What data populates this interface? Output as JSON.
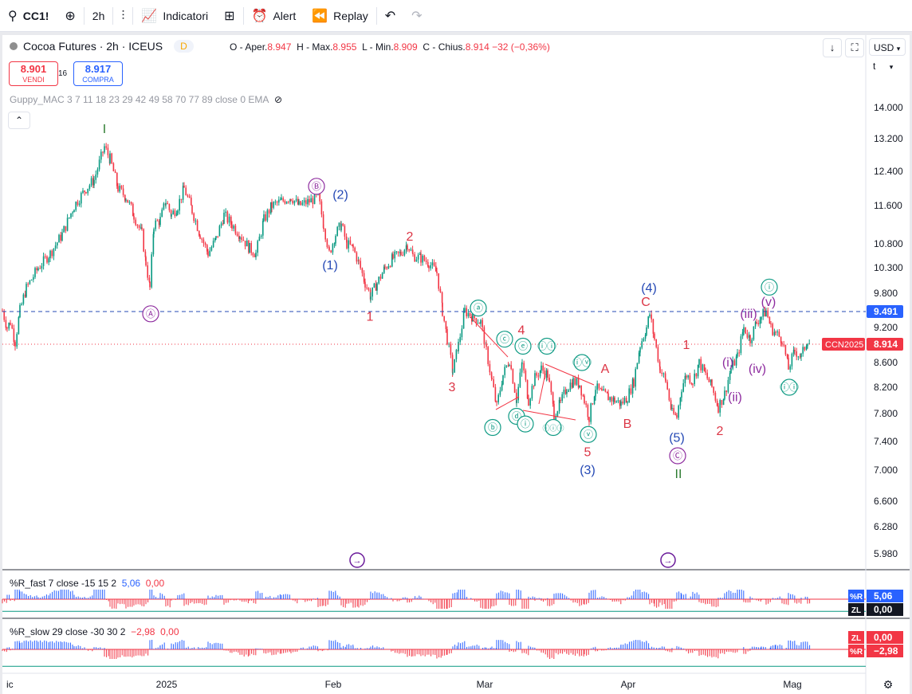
{
  "toolbar": {
    "symbol": "CC1!",
    "interval": "2h",
    "indicators_label": "Indicatori",
    "alert_label": "Alert",
    "replay_label": "Replay"
  },
  "header": {
    "title": "Cocoa Futures · 2h · ICEUS",
    "badge": "D",
    "ohlc": {
      "open_label": "O - Aper.",
      "open": "8.947",
      "high_label": "H - Max.",
      "high": "8.955",
      "low_label": "L - Min.",
      "low": "8.909",
      "close_label": "C - Chius.",
      "close": "8.914",
      "change": "−32 (−0,36%)"
    }
  },
  "trade": {
    "sell_price": "8.901",
    "sell_label": "VENDI",
    "spread": "16",
    "buy_price": "8.917",
    "buy_label": "COMPRA"
  },
  "indicator_label": "Guppy_MAC 3 7 11 18 23 29 42 49 58 70 77 89 close 0 EMA",
  "right_controls": {
    "currency": "USD",
    "unit": "t"
  },
  "colors": {
    "up": "#089981",
    "down": "#f23645",
    "blue": "#2962ff",
    "wave_blue": "#2549b5",
    "wave_red": "#dc3545",
    "wave_teal": "#0f9b84",
    "wave_purple": "#8e2c9f",
    "wave_green": "#2e7d32"
  },
  "chart_data": [
    {
      "type": "candlestick",
      "title": "Cocoa Futures · 2h · ICEUS",
      "ylim": [
        5.7,
        14.5
      ],
      "y_ticks": [
        "14.000",
        "13.200",
        "12.400",
        "11.600",
        "10.800",
        "10.300",
        "9.800",
        "9.200",
        "8.600",
        "8.200",
        "7.800",
        "7.400",
        "7.000",
        "6.600",
        "6.280",
        "5.980"
      ],
      "x_ticks": [
        "ic",
        "2025",
        "Feb",
        "Mar",
        "Apr",
        "Mag"
      ],
      "price_path": [
        [
          0,
          9.5
        ],
        [
          6,
          9.2
        ],
        [
          10,
          9.3
        ],
        [
          16,
          8.95
        ],
        [
          22,
          9.5
        ],
        [
          30,
          9.9
        ],
        [
          45,
          10.3
        ],
        [
          60,
          10.6
        ],
        [
          75,
          11.0
        ],
        [
          90,
          11.6
        ],
        [
          105,
          12.0
        ],
        [
          115,
          12.2
        ],
        [
          128,
          13.0
        ],
        [
          135,
          12.7
        ],
        [
          145,
          12.0
        ],
        [
          155,
          11.8
        ],
        [
          165,
          11.4
        ],
        [
          175,
          11.0
        ],
        [
          180,
          10.4
        ],
        [
          185,
          9.9
        ],
        [
          190,
          11.2
        ],
        [
          198,
          11.3
        ],
        [
          205,
          11.7
        ],
        [
          212,
          11.4
        ],
        [
          220,
          11.6
        ],
        [
          228,
          12.0
        ],
        [
          238,
          11.5
        ],
        [
          248,
          11.0
        ],
        [
          258,
          10.6
        ],
        [
          268,
          10.9
        ],
        [
          278,
          11.4
        ],
        [
          288,
          11.2
        ],
        [
          298,
          11.0
        ],
        [
          310,
          10.7
        ],
        [
          318,
          10.6
        ],
        [
          328,
          11.3
        ],
        [
          338,
          11.6
        ],
        [
          350,
          11.7
        ],
        [
          362,
          11.8
        ],
        [
          372,
          11.6
        ],
        [
          385,
          11.7
        ],
        [
          396,
          11.8
        ],
        [
          403,
          11.2
        ],
        [
          410,
          10.6
        ],
        [
          418,
          11.0
        ],
        [
          425,
          11.2
        ],
        [
          432,
          10.8
        ],
        [
          440,
          10.7
        ],
        [
          447,
          10.4
        ],
        [
          455,
          10.0
        ],
        [
          462,
          9.75
        ],
        [
          470,
          10.0
        ],
        [
          480,
          10.3
        ],
        [
          490,
          10.5
        ],
        [
          500,
          10.6
        ],
        [
          508,
          10.8
        ],
        [
          515,
          10.55
        ],
        [
          525,
          10.5
        ],
        [
          535,
          10.4
        ],
        [
          545,
          10.2
        ],
        [
          552,
          9.5
        ],
        [
          558,
          9.0
        ],
        [
          565,
          8.45
        ],
        [
          572,
          8.9
        ],
        [
          580,
          9.5
        ],
        [
          590,
          9.4
        ],
        [
          600,
          9.3
        ],
        [
          607,
          8.8
        ],
        [
          614,
          8.3
        ],
        [
          620,
          7.9
        ],
        [
          628,
          8.4
        ],
        [
          636,
          8.65
        ],
        [
          645,
          8.0
        ],
        [
          652,
          8.6
        ],
        [
          660,
          8.0
        ],
        [
          668,
          8.35
        ],
        [
          676,
          8.5
        ],
        [
          684,
          8.4
        ],
        [
          692,
          7.8
        ],
        [
          700,
          7.95
        ],
        [
          708,
          8.2
        ],
        [
          716,
          8.3
        ],
        [
          724,
          8.25
        ],
        [
          730,
          8.0
        ],
        [
          736,
          7.75
        ],
        [
          744,
          8.2
        ],
        [
          752,
          8.1
        ],
        [
          760,
          8.05
        ],
        [
          768,
          8.0
        ],
        [
          776,
          7.95
        ],
        [
          784,
          8.05
        ],
        [
          792,
          8.3
        ],
        [
          800,
          8.9
        ],
        [
          808,
          9.2
        ],
        [
          812,
          9.45
        ],
        [
          818,
          9.0
        ],
        [
          825,
          8.5
        ],
        [
          832,
          8.3
        ],
        [
          840,
          7.8
        ],
        [
          846,
          7.75
        ],
        [
          852,
          8.2
        ],
        [
          858,
          8.4
        ],
        [
          866,
          8.3
        ],
        [
          874,
          8.6
        ],
        [
          882,
          8.4
        ],
        [
          890,
          8.2
        ],
        [
          898,
          7.9
        ],
        [
          906,
          8.1
        ],
        [
          914,
          8.5
        ],
        [
          922,
          8.7
        ],
        [
          930,
          9.2
        ],
        [
          938,
          9.0
        ],
        [
          946,
          9.3
        ],
        [
          952,
          9.4
        ],
        [
          958,
          9.5
        ],
        [
          964,
          9.2
        ],
        [
          970,
          9.1
        ],
        [
          978,
          9.0
        ],
        [
          986,
          8.5
        ],
        [
          994,
          8.8
        ],
        [
          1002,
          8.7
        ],
        [
          1010,
          9.0
        ],
        [
          1014,
          8.91
        ]
      ],
      "waves": [
        {
          "label": "I",
          "color": "green",
          "x": 128,
          "y": 13.45
        },
        {
          "label": "Ⓐ",
          "color": "purple",
          "x": 186,
          "y": 9.45
        },
        {
          "label": "Ⓑ",
          "color": "purple",
          "x": 394,
          "y": 12.05
        },
        {
          "label": "(2)",
          "color": "blue",
          "x": 424,
          "y": 11.85
        },
        {
          "label": "(1)",
          "color": "blue",
          "x": 411,
          "y": 10.35
        },
        {
          "label": "1",
          "color": "red",
          "x": 461,
          "y": 9.4
        },
        {
          "label": "2",
          "color": "red",
          "x": 511,
          "y": 10.95
        },
        {
          "label": "3",
          "color": "red",
          "x": 564,
          "y": 8.2
        },
        {
          "label": "ⓐ",
          "color": "teal",
          "x": 597,
          "y": 9.55
        },
        {
          "label": "ⓒ",
          "color": "teal",
          "x": 630,
          "y": 9.0
        },
        {
          "label": "4",
          "color": "red",
          "x": 651,
          "y": 9.15
        },
        {
          "label": "ⓔ",
          "color": "teal",
          "x": 653,
          "y": 8.88
        },
        {
          "label": "ⓑ",
          "color": "teal",
          "x": 615,
          "y": 7.6
        },
        {
          "label": "ⓓ",
          "color": "teal",
          "x": 645,
          "y": 7.76
        },
        {
          "label": "ⓘ",
          "color": "teal",
          "x": 656,
          "y": 7.65
        },
        {
          "label": "ⓘⓘ",
          "color": "teal",
          "x": 683,
          "y": 8.88
        },
        {
          "label": "ⓘⓘⓘ",
          "color": "teal",
          "x": 691,
          "y": 7.6
        },
        {
          "label": "ⓘⓥ",
          "color": "teal",
          "x": 727,
          "y": 8.6
        },
        {
          "label": "ⓥ",
          "color": "teal",
          "x": 735,
          "y": 7.5
        },
        {
          "label": "A",
          "color": "red",
          "x": 756,
          "y": 8.5
        },
        {
          "label": "B",
          "color": "red",
          "x": 784,
          "y": 7.65
        },
        {
          "label": "5",
          "color": "red",
          "x": 734,
          "y": 7.25
        },
        {
          "label": "(3)",
          "color": "blue",
          "x": 734,
          "y": 7.0
        },
        {
          "label": "(4)",
          "color": "blue",
          "x": 811,
          "y": 9.9
        },
        {
          "label": "C",
          "color": "red",
          "x": 807,
          "y": 9.65
        },
        {
          "label": "(5)",
          "color": "blue",
          "x": 846,
          "y": 7.45
        },
        {
          "label": "Ⓒ",
          "color": "purple",
          "x": 847,
          "y": 7.2
        },
        {
          "label": "II",
          "color": "green",
          "x": 848,
          "y": 6.95
        },
        {
          "label": "1",
          "color": "red",
          "x": 858,
          "y": 8.9
        },
        {
          "label": "2",
          "color": "red",
          "x": 900,
          "y": 7.55
        },
        {
          "label": "(i)",
          "color": "purple",
          "x": 910,
          "y": 8.6
        },
        {
          "label": "(ii)",
          "color": "purple",
          "x": 919,
          "y": 8.05
        },
        {
          "label": "(iii)",
          "color": "purple",
          "x": 936,
          "y": 9.45
        },
        {
          "label": "(iv)",
          "color": "purple",
          "x": 947,
          "y": 8.5
        },
        {
          "label": "(v)",
          "color": "purple",
          "x": 961,
          "y": 9.65
        },
        {
          "label": "ⓘ",
          "color": "teal",
          "x": 962,
          "y": 9.92
        },
        {
          "label": "ⓘⓘ",
          "color": "teal",
          "x": 987,
          "y": 8.2
        }
      ],
      "levels": [
        {
          "value": 9.491,
          "label": "9.491",
          "color": "blue",
          "style": "dashed"
        },
        {
          "value": 8.914,
          "label": "8.914",
          "tag": "CCN2025",
          "color": "red",
          "style": "dotted"
        }
      ]
    },
    {
      "type": "histogram",
      "title": "%R_fast 7 close -15 15 2",
      "values_label": [
        "5,06",
        "0,00"
      ],
      "tags": [
        {
          "name": "%R",
          "value": "5,06"
        },
        {
          "name": "ZL",
          "value": "0,00"
        }
      ],
      "ylim": [
        -15,
        15
      ]
    },
    {
      "type": "histogram",
      "title": "%R_slow 29 close -30 30 2",
      "values_label": [
        "−2,98",
        "0,00"
      ],
      "tags": [
        {
          "name": "ZL",
          "value": "0,00"
        },
        {
          "name": "%R",
          "value": "−2,98"
        }
      ],
      "ylim": [
        -30,
        30
      ]
    }
  ]
}
